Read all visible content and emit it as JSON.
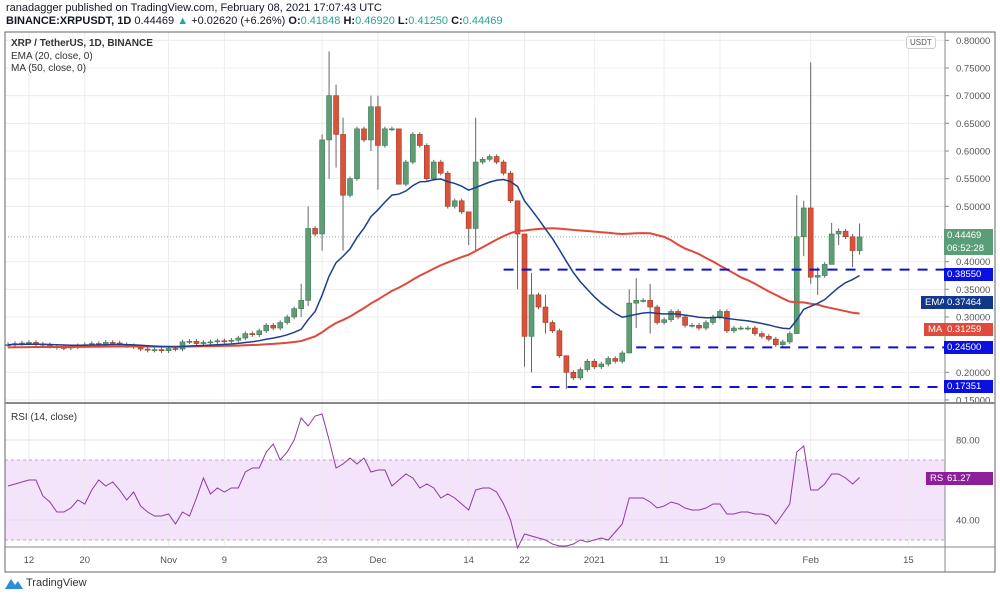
{
  "header": {
    "publisher_line": "ranadagger published on TradingView.com, February 08, 2021 17:07:43 UTC",
    "symbol": "BINANCE:XRPUSDT, 1D",
    "last": "0.44469",
    "change": "+0.02620 (+6.26%)",
    "o_label": "O:",
    "o": "0.41848",
    "h_label": "H:",
    "h": "0.46920",
    "l_label": "L:",
    "l": "0.41250",
    "c_label": "C:",
    "c": "0.44469",
    "up_arrow": "▲"
  },
  "legend": {
    "title": "XRP / TetherUS, 1D, BINANCE",
    "ema": "EMA (20, close, 0)",
    "ma": "MA (50, close, 0)",
    "rsi": "RSI (14, close)"
  },
  "currency_button": "USDT",
  "price_labels": {
    "last": "0.44469",
    "countdown": "06:52:28",
    "resistance": "0.38550",
    "ema_tag": "EMA",
    "ema": "0.37464",
    "ma_tag": "MA",
    "ma": "0.31259",
    "support1": "0.24500",
    "support2": "0.17351",
    "rsi_tag": "RSI",
    "rsi": "61.27"
  },
  "footer": {
    "brand": "TradingView"
  },
  "colors": {
    "up": "#5f9e74",
    "down": "#d9533b",
    "ema": "#1b3f8f",
    "ma": "#e0483a",
    "level": "#1010d0",
    "rsi": "#8e3aa0",
    "rsi_band": "#f3e3fb"
  },
  "chart_data": {
    "type": "candlestick",
    "title": "XRP / TetherUS, 1D, BINANCE",
    "ylim": [
      0.14,
      0.81
    ],
    "yticks": [
      "0.80000",
      "0.75000",
      "0.70000",
      "0.65000",
      "0.60000",
      "0.55000",
      "0.50000",
      "0.40000",
      "0.35000",
      "0.30000",
      "0.20000",
      "0.15000"
    ],
    "ytick_values": [
      0.8,
      0.75,
      0.7,
      0.65,
      0.6,
      0.55,
      0.5,
      0.4,
      0.35,
      0.3,
      0.2,
      0.15
    ],
    "xticks": [
      {
        "label": "12",
        "index": 3
      },
      {
        "label": "20",
        "index": 11
      },
      {
        "label": "Nov",
        "index": 23
      },
      {
        "label": "9",
        "index": 31
      },
      {
        "label": "23",
        "index": 45
      },
      {
        "label": "Dec",
        "index": 53
      },
      {
        "label": "14",
        "index": 66
      },
      {
        "label": "22",
        "index": 74
      },
      {
        "label": "2021",
        "index": 84
      },
      {
        "label": "11",
        "index": 94
      },
      {
        "label": "19",
        "index": 102
      },
      {
        "label": "Feb",
        "index": 115
      },
      {
        "label": "15",
        "index": 129
      }
    ],
    "first_open": 0.249,
    "close": [
      0.25,
      0.252,
      0.253,
      0.254,
      0.251,
      0.25,
      0.247,
      0.245,
      0.244,
      0.246,
      0.248,
      0.25,
      0.252,
      0.251,
      0.254,
      0.253,
      0.25,
      0.248,
      0.246,
      0.242,
      0.24,
      0.241,
      0.239,
      0.243,
      0.242,
      0.255,
      0.256,
      0.252,
      0.254,
      0.255,
      0.257,
      0.256,
      0.258,
      0.262,
      0.27,
      0.268,
      0.275,
      0.285,
      0.28,
      0.29,
      0.3,
      0.315,
      0.33,
      0.46,
      0.45,
      0.62,
      0.7,
      0.63,
      0.52,
      0.55,
      0.64,
      0.62,
      0.68,
      0.61,
      0.64,
      0.64,
      0.54,
      0.58,
      0.63,
      0.61,
      0.55,
      0.58,
      0.56,
      0.5,
      0.51,
      0.49,
      0.46,
      0.58,
      0.585,
      0.59,
      0.58,
      0.56,
      0.51,
      0.45,
      0.265,
      0.34,
      0.318,
      0.29,
      0.275,
      0.23,
      0.2,
      0.19,
      0.205,
      0.22,
      0.21,
      0.215,
      0.225,
      0.22,
      0.235,
      0.325,
      0.33,
      0.33,
      0.318,
      0.29,
      0.295,
      0.31,
      0.3,
      0.285,
      0.285,
      0.28,
      0.29,
      0.3,
      0.31,
      0.275,
      0.28,
      0.28,
      0.28,
      0.27,
      0.265,
      0.26,
      0.25,
      0.255,
      0.27,
      0.445,
      0.497,
      0.372,
      0.375,
      0.395,
      0.45,
      0.455,
      0.445,
      0.42,
      0.44469
    ],
    "wick_overrides": [
      [
        42,
        0.36,
        0.3
      ],
      [
        43,
        0.5,
        0.32
      ],
      [
        45,
        0.63,
        0.42
      ],
      [
        46,
        0.78,
        0.55
      ],
      [
        47,
        0.72,
        0.57
      ],
      [
        48,
        0.66,
        0.42
      ],
      [
        52,
        0.7,
        0.6
      ],
      [
        53,
        0.7,
        0.53
      ],
      [
        56,
        0.64,
        0.54
      ],
      [
        66,
        0.47,
        0.43
      ],
      [
        67,
        0.66,
        0.42
      ],
      [
        73,
        0.49,
        0.35
      ],
      [
        74,
        0.4,
        0.21
      ],
      [
        75,
        0.38,
        0.2
      ],
      [
        77,
        0.34,
        0.27
      ],
      [
        80,
        0.23,
        0.17
      ],
      [
        89,
        0.35,
        0.24
      ],
      [
        90,
        0.37,
        0.28
      ],
      [
        92,
        0.36,
        0.27
      ],
      [
        113,
        0.52,
        0.27
      ],
      [
        114,
        0.51,
        0.41
      ],
      [
        115,
        0.76,
        0.36
      ],
      [
        116,
        0.39,
        0.34
      ],
      [
        118,
        0.47,
        0.41
      ],
      [
        119,
        0.46,
        0.43
      ],
      [
        121,
        0.45,
        0.39
      ],
      [
        122,
        0.469,
        0.4125
      ]
    ],
    "levels": [
      {
        "value": 0.3855,
        "from_index": 71
      },
      {
        "value": 0.245,
        "from_index": 90
      },
      {
        "value": 0.17351,
        "from_index": 75
      }
    ],
    "current_price": 0.44469,
    "ema_period": 20,
    "ma_period": 50,
    "rsi": {
      "title": "RSI (14, close)",
      "ylim": [
        22,
        97
      ],
      "yticks": [
        "80.00",
        "40.00"
      ],
      "ytick_values": [
        80,
        40
      ],
      "band": [
        30,
        70
      ],
      "values": [
        57,
        58,
        59,
        60,
        60,
        52,
        49,
        44,
        44,
        46,
        50,
        48,
        55,
        60,
        57,
        59,
        55,
        50,
        54,
        47,
        44,
        42,
        42,
        43,
        38,
        44,
        42,
        51,
        61,
        53,
        56,
        54,
        56,
        56,
        64,
        66,
        66,
        74,
        78,
        70,
        74,
        80,
        91,
        87,
        92,
        93,
        80,
        66,
        68,
        71,
        68,
        71,
        64,
        65,
        65,
        57,
        60,
        63,
        61,
        56,
        58,
        56,
        51,
        53,
        51,
        48,
        45,
        55,
        56,
        56,
        54,
        48,
        40,
        26,
        33,
        32,
        31,
        30,
        28,
        27,
        27,
        28,
        30,
        29,
        30,
        31,
        30,
        34,
        38,
        51,
        51,
        51,
        49,
        46,
        47,
        49,
        48,
        46,
        45,
        45,
        46,
        48,
        48,
        43,
        43,
        44,
        44,
        43,
        43,
        42,
        38,
        43,
        48,
        74,
        77,
        55,
        55,
        58,
        63,
        63,
        61,
        58,
        61.27
      ]
    }
  }
}
